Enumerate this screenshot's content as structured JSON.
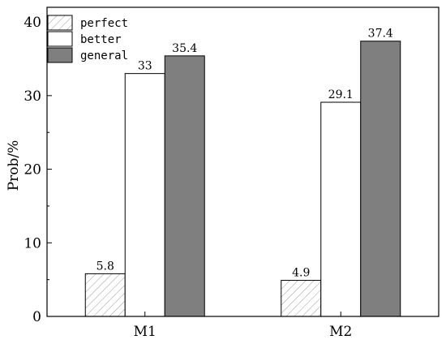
{
  "chart_data": {
    "type": "bar",
    "categories": [
      "M1",
      "M2"
    ],
    "series": [
      {
        "name": "perfect",
        "values": [
          5.8,
          4.9
        ],
        "color": "#ffffff",
        "pattern": "hatch"
      },
      {
        "name": "better",
        "values": [
          33,
          29.1
        ],
        "color": "#ffffff",
        "pattern": "solid"
      },
      {
        "name": "general",
        "values": [
          35.4,
          37.4
        ],
        "color": "#7f7f7f",
        "pattern": "solid"
      }
    ],
    "value_labels": [
      [
        "5.8",
        "4.9"
      ],
      [
        "33",
        "29.1"
      ],
      [
        "35.4",
        "37.4"
      ]
    ],
    "ylabel": "Prob/%",
    "xlabel": "",
    "ylim": [
      0,
      42
    ],
    "yticks": [
      0,
      10,
      20,
      30,
      40
    ],
    "legend_position": "top-left",
    "grid": false
  }
}
